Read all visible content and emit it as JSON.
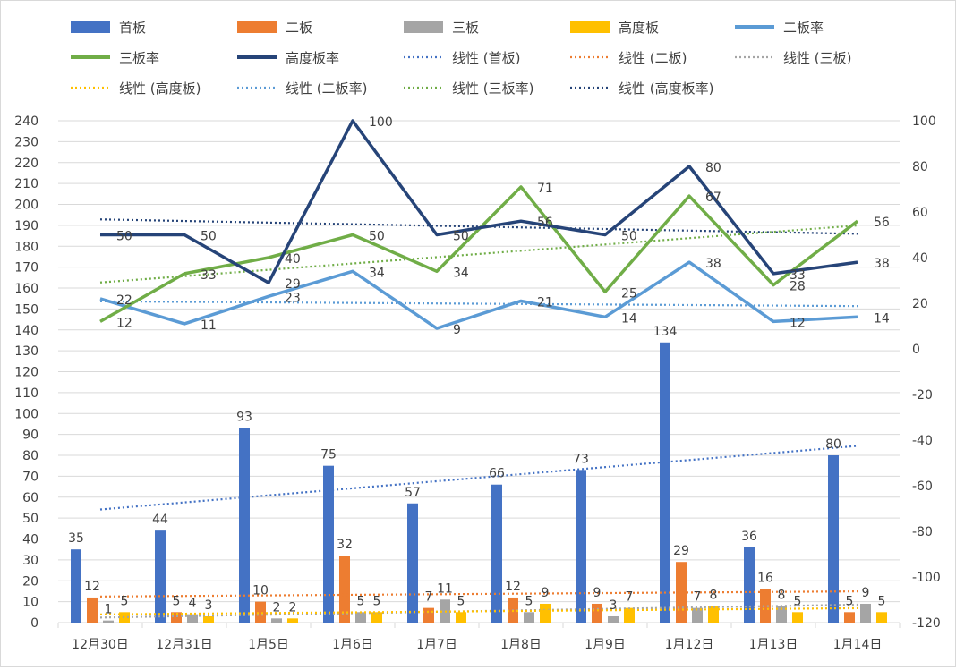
{
  "chart_data": {
    "type": "bar+line",
    "categories": [
      "12月30日",
      "12月31日",
      "1月5日",
      "1月6日",
      "1月7日",
      "1月8日",
      "1月9日",
      "1月12日",
      "1月13日",
      "1月14日"
    ],
    "left_axis": {
      "min": 0,
      "max": 240,
      "step": 10
    },
    "right_axis": {
      "min": -120,
      "max": 100,
      "step": 20
    },
    "bar_series": [
      {
        "name": "首板",
        "color": "#4472C4",
        "values": [
          35,
          44,
          93,
          75,
          57,
          66,
          73,
          134,
          36,
          80
        ]
      },
      {
        "name": "二板",
        "color": "#ED7D31",
        "values": [
          12,
          5,
          10,
          32,
          7,
          12,
          9,
          29,
          16,
          5
        ]
      },
      {
        "name": "三板",
        "color": "#A5A5A5",
        "values": [
          1,
          4,
          2,
          5,
          11,
          5,
          3,
          7,
          8,
          9
        ]
      },
      {
        "name": "高度板",
        "color": "#FFC000",
        "values": [
          5,
          3,
          2,
          5,
          5,
          9,
          7,
          8,
          5,
          5
        ]
      }
    ],
    "line_series": [
      {
        "name": "二板率",
        "color": "#5B9BD5",
        "values": [
          22,
          11,
          23,
          34,
          9,
          21,
          14,
          38,
          12,
          14
        ]
      },
      {
        "name": "三板率",
        "color": "#70AD47",
        "values": [
          12,
          33,
          40,
          50,
          34,
          71,
          25,
          67,
          28,
          56
        ]
      },
      {
        "name": "高度板率",
        "color": "#264478",
        "values": [
          50,
          50,
          29,
          100,
          50,
          56,
          50,
          80,
          33,
          38
        ]
      }
    ],
    "trendlines": [
      {
        "name": "线性 (首板)",
        "color": "#4472C4",
        "of": "首板",
        "axis": "left"
      },
      {
        "name": "线性 (二板)",
        "color": "#ED7D31",
        "of": "二板",
        "axis": "left"
      },
      {
        "name": "线性 (三板)",
        "color": "#A5A5A5",
        "of": "三板",
        "axis": "left"
      },
      {
        "name": "线性 (高度板)",
        "color": "#FFC000",
        "of": "高度板",
        "axis": "left"
      },
      {
        "name": "线性 (二板率)",
        "color": "#5B9BD5",
        "of": "二板率",
        "axis": "right"
      },
      {
        "name": "线性 (三板率)",
        "color": "#70AD47",
        "of": "三板率",
        "axis": "right"
      },
      {
        "name": "线性 (高度板率)",
        "color": "#264478",
        "of": "高度板率",
        "axis": "right"
      }
    ],
    "legend": [
      "首板",
      "二板",
      "三板",
      "高度板",
      "二板率",
      "三板率",
      "高度板率",
      "线性 (首板)",
      "线性 (二板)",
      "线性 (三板)",
      "线性 (高度板)",
      "线性 (二板率)",
      "线性 (三板率)",
      "线性 (高度板率)"
    ],
    "legend_position": "top",
    "grid": true,
    "title": ""
  }
}
